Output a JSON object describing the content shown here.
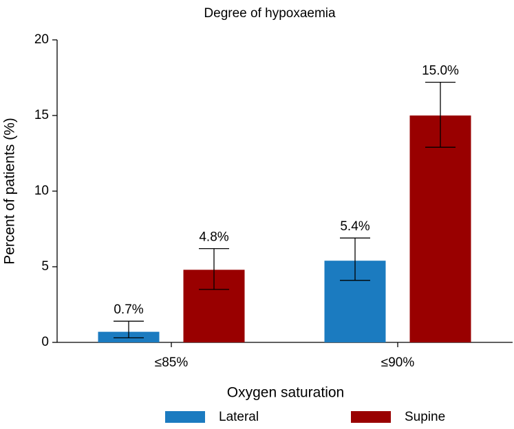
{
  "chart_data": {
    "type": "bar",
    "title": "Degree of hypoxaemia",
    "x_label": "Oxygen saturation",
    "y_label": "Percent of patients (%)",
    "categories": [
      "≤85%",
      "≤90%"
    ],
    "series": [
      {
        "name": "Lateral",
        "color": "#1b7bc0",
        "values": [
          0.7,
          5.4
        ],
        "value_labels": [
          "0.7%",
          "5.4%"
        ],
        "error_lower": [
          0.3,
          4.1
        ],
        "error_upper": [
          1.4,
          6.9
        ]
      },
      {
        "name": "Supine",
        "color": "#990000",
        "values": [
          4.8,
          15.0
        ],
        "value_labels": [
          "4.8%",
          "15.0%"
        ],
        "error_lower": [
          3.5,
          12.9
        ],
        "error_upper": [
          6.2,
          17.2
        ]
      }
    ],
    "ylim": [
      0,
      20
    ],
    "yticks": [
      0,
      5,
      10,
      15,
      20
    ],
    "legend": "bottom"
  }
}
